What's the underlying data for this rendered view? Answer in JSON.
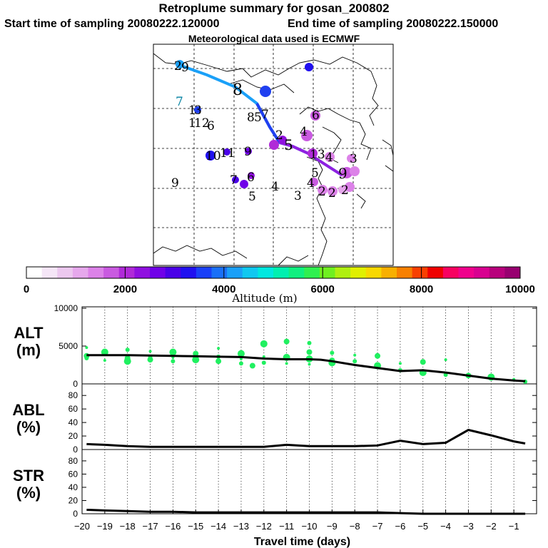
{
  "header": {
    "title": "Retroplume summary for gosan_200802",
    "start": "Start time of sampling 20080222.120000",
    "end": "End time of sampling 20080222.150000",
    "met": "Meteorological data used is ECMWF"
  },
  "colorbar": {
    "label": "Altitude (m)",
    "ticks": [
      "0",
      "2000",
      "4000",
      "6000",
      "8000",
      "10000"
    ],
    "colors": [
      "#ffffff",
      "#f5e6f7",
      "#ecc8ef",
      "#e6a8ec",
      "#dc82e8",
      "#c95ae0",
      "#b02ad8",
      "#9010e0",
      "#7000e8",
      "#4a00e8",
      "#2010f0",
      "#1a40f8",
      "#1a70f8",
      "#1aa0f8",
      "#10c8f0",
      "#00e8e0",
      "#00f0b0",
      "#10f080",
      "#30f050",
      "#70f020",
      "#b0f010",
      "#e0f000",
      "#f8d800",
      "#f8b000",
      "#f88000",
      "#f84000",
      "#f00000",
      "#f80060",
      "#f0008c",
      "#d80090",
      "#b8007c",
      "#980070"
    ]
  },
  "map": {
    "plume_labels": [
      "2",
      "8",
      "7",
      "6",
      "5",
      "4",
      "3",
      "1",
      "9",
      "11",
      "10",
      "12",
      "13"
    ]
  },
  "bottom": {
    "xlabel": "Travel time (days)",
    "xticks": [
      "−20",
      "−19",
      "−18",
      "−17",
      "−16",
      "−15",
      "−14",
      "−13",
      "−12",
      "−11",
      "−10",
      "−9",
      "−8",
      "−7",
      "−6",
      "−5",
      "−4",
      "−3",
      "−2",
      "−1"
    ]
  },
  "chart_data": [
    {
      "type": "line",
      "name": "ALT",
      "title": "ALT",
      "ylabel": "ALT (m)",
      "yticks": [
        "0",
        "5000",
        "10000"
      ],
      "ylim": [
        0,
        10000
      ],
      "xlim": [
        -20,
        0
      ],
      "x": [
        -19.8,
        -19,
        -18,
        -17,
        -16,
        -15,
        -14,
        -13,
        -12,
        -11,
        -10,
        -9.5,
        -9,
        -8,
        -7,
        -6,
        -5,
        -4,
        -3,
        -2,
        -1,
        -0.5
      ],
      "values": [
        3800,
        3800,
        3800,
        3750,
        3700,
        3650,
        3600,
        3550,
        3350,
        3250,
        3250,
        3200,
        3000,
        2500,
        2100,
        1700,
        1800,
        1500,
        1100,
        700,
        450,
        350
      ],
      "scatter_x": [
        -19.8,
        -19.8,
        -19.8,
        -19,
        -19,
        -18,
        -18,
        -18,
        -17,
        -17,
        -17,
        -16,
        -16,
        -16,
        -15,
        -15,
        -14,
        -14,
        -14,
        -13,
        -13,
        -13,
        -12.5,
        -12,
        -12,
        -12,
        -11,
        -11,
        -11,
        -10,
        -10,
        -10,
        -10,
        -9,
        -9,
        -9,
        -8,
        -8,
        -7,
        -7,
        -6,
        -6,
        -5,
        -5,
        -4,
        -4,
        -3,
        -2,
        -1,
        -0.5
      ],
      "scatter_y": [
        4800,
        3400,
        3700,
        4200,
        3100,
        4500,
        3400,
        3000,
        4300,
        3500,
        3200,
        4200,
        3500,
        3000,
        4000,
        3200,
        4700,
        3600,
        3000,
        4000,
        3300,
        2700,
        2400,
        5300,
        3600,
        2800,
        5600,
        3500,
        2700,
        5400,
        4200,
        3300,
        2600,
        4100,
        3100,
        2800,
        3800,
        3000,
        3700,
        2400,
        2700,
        1800,
        2900,
        1500,
        3200,
        1200,
        1100,
        900,
        600,
        300
      ]
    },
    {
      "type": "line",
      "name": "ABL",
      "title": "ABL",
      "ylabel": "ABL (%)",
      "yticks": [
        "0",
        "20",
        "40",
        "60",
        "80"
      ],
      "ylim": [
        0,
        95
      ],
      "xlim": [
        -20,
        0
      ],
      "x": [
        -19.8,
        -19,
        -18,
        -17,
        -16,
        -15,
        -14,
        -13,
        -12,
        -11,
        -10,
        -9,
        -8,
        -7,
        -6,
        -5,
        -4,
        -3,
        -2,
        -1,
        -0.5
      ],
      "values": [
        8,
        7,
        5,
        4,
        4,
        4,
        4,
        4,
        4,
        7,
        5,
        5,
        5,
        6,
        13,
        8,
        10,
        29,
        21,
        12,
        9
      ]
    },
    {
      "type": "line",
      "name": "STR",
      "title": "STR",
      "ylabel": "STR (%)",
      "yticks": [
        "0",
        "20",
        "40",
        "60",
        "80"
      ],
      "ylim": [
        0,
        95
      ],
      "xlim": [
        -20,
        0
      ],
      "x": [
        -19.8,
        -19,
        -18,
        -17,
        -16,
        -15,
        -14,
        -13,
        -12,
        -11,
        -10,
        -9,
        -8,
        -7,
        -6,
        -5,
        -4,
        -3,
        -2,
        -1,
        -0.5
      ],
      "values": [
        6,
        5,
        4,
        3,
        3,
        2,
        2,
        2,
        2,
        2,
        2,
        2,
        2,
        2,
        1,
        0,
        0,
        0,
        0,
        0,
        0
      ]
    }
  ]
}
